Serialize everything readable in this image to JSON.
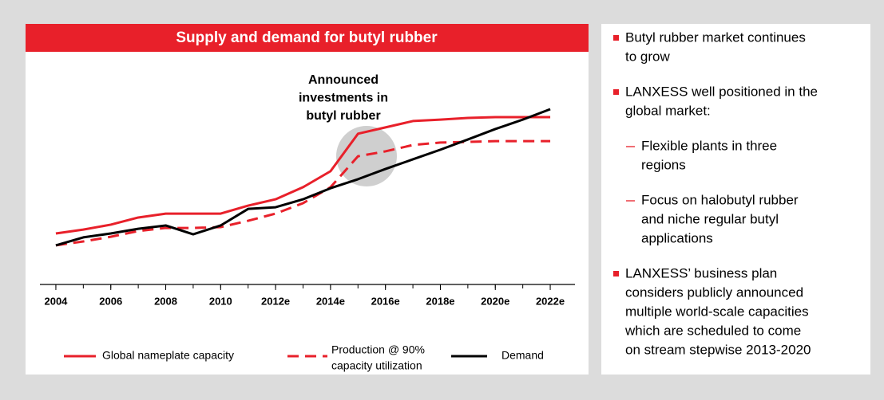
{
  "chart_data": {
    "type": "line",
    "title": "Supply and demand for butyl rubber",
    "annotation": [
      "Announced",
      "investments in",
      "butyl rubber"
    ],
    "x": [
      2004,
      2005,
      2006,
      2007,
      2008,
      2009,
      2010,
      2011,
      2012,
      2013,
      2014,
      2015,
      2016,
      2017,
      2018,
      2019,
      2020,
      2021,
      2022
    ],
    "xlim": [
      2003.42,
      2022.9
    ],
    "xticks": [
      2004,
      2006,
      2008,
      2010,
      {
        "value": 2012,
        "label": "2012e"
      },
      {
        "value": 2014,
        "label": "2014e"
      },
      {
        "value": 2016,
        "label": "2016e"
      },
      {
        "value": 2018,
        "label": "2018e"
      },
      {
        "value": 2020,
        "label": "2020e"
      },
      {
        "value": 2022,
        "label": "2022e"
      }
    ],
    "ylim": [
      0,
      100
    ],
    "series": [
      {
        "name": "Global nameplate capacity",
        "color": "#e8202a",
        "dash": false,
        "values": [
          24.9,
          26.8,
          29.2,
          32.7,
          34.6,
          34.6,
          34.6,
          38.5,
          41.6,
          47.5,
          55.3,
          73.6,
          76.7,
          79.8,
          80.5,
          81.3,
          81.7,
          81.7,
          81.7
        ]
      },
      {
        "name": "Production @ 90% capacity utilization",
        "legend_lines": [
          "Production @ 90%",
          "capacity utilization"
        ],
        "color": "#e8202a",
        "dash": true,
        "values": [
          19.1,
          21,
          23.3,
          26.1,
          27.6,
          27.6,
          28,
          31.1,
          34.6,
          39.7,
          47.5,
          62.6,
          65,
          68.1,
          69.3,
          69.6,
          70,
          70,
          70
        ]
      },
      {
        "name": "Demand",
        "color": "#000000",
        "dash": false,
        "values": [
          19.1,
          23,
          24.9,
          27.2,
          28.8,
          24.5,
          28.8,
          36.9,
          37.7,
          41.6,
          47,
          51.4,
          56.4,
          61.1,
          65.8,
          70.8,
          75.9,
          80.5,
          85.6
        ]
      }
    ]
  },
  "sidebar": {
    "items": [
      {
        "level": 1,
        "lines": [
          "Butyl rubber market continues",
          "to grow"
        ]
      },
      {
        "level": 1,
        "lines": [
          "LANXESS well positioned in the",
          "global market:"
        ]
      },
      {
        "level": 2,
        "lines": [
          "Flexible plants in three",
          "regions"
        ]
      },
      {
        "level": 2,
        "lines": [
          "Focus on halobutyl rubber",
          "and niche regular butyl",
          "applications"
        ]
      },
      {
        "level": 1,
        "lines": [
          "LANXESS’ business plan",
          "considers publicly announced",
          "multiple world-scale capacities",
          "which are scheduled to come",
          "on stream stepwise 2013-2020"
        ]
      }
    ]
  }
}
